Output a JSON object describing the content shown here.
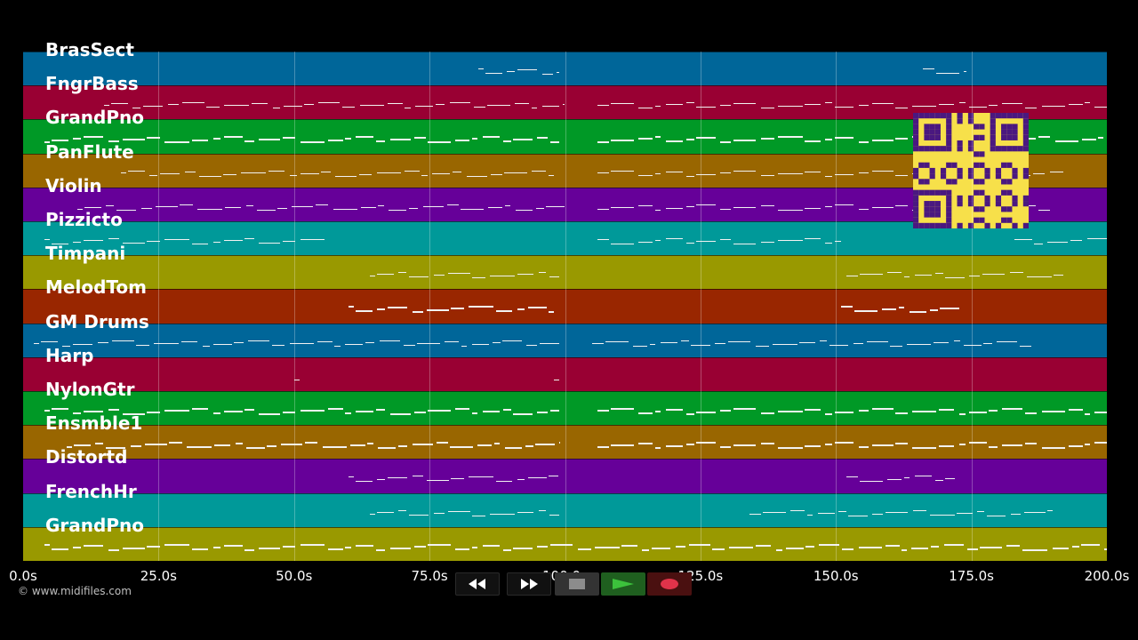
{
  "tracks": [
    {
      "label": "BrasSect",
      "color": "#006699"
    },
    {
      "label": "FngrBass",
      "color": "#990033"
    },
    {
      "label": "GrandPno",
      "color": "#009926"
    },
    {
      "label": "PanFlute",
      "color": "#996600"
    },
    {
      "label": "Violin",
      "color": "#660099"
    },
    {
      "label": "Pizzicto",
      "color": "#009999"
    },
    {
      "label": "Timpani",
      "color": "#999900"
    },
    {
      "label": "MelodTom",
      "color": "#992600"
    },
    {
      "label": "GM Drums",
      "color": "#006699"
    },
    {
      "label": "Harp",
      "color": "#990033"
    },
    {
      "label": "NylonGtr",
      "color": "#009926"
    },
    {
      "label": "Ensmble1",
      "color": "#996600"
    },
    {
      "label": "Distortd",
      "color": "#660099"
    },
    {
      "label": "FrenchHr",
      "color": "#009999"
    },
    {
      "label": "GrandPno",
      "color": "#999900"
    }
  ],
  "time_axis": {
    "start_seconds": 0,
    "end_seconds": 200,
    "ticks": [
      "0.0s",
      "25.0s",
      "50.0s",
      "75.0s",
      "100.0s",
      "125.0s",
      "150.0s",
      "175.0s",
      "200.0s"
    ]
  },
  "copyright": "© www.midifiles.com",
  "transport": {
    "rewind_icon": "rewind-icon",
    "fast_forward_icon": "fast-forward-icon",
    "stop_icon": "stop-icon",
    "play_icon": "play-icon",
    "record_icon": "record-icon",
    "play_color": "#1f9a1f",
    "record_color": "#e0334a"
  },
  "qr_code": {
    "color": "#f7e04a",
    "ink": "#4a1880"
  },
  "notes": {
    "0": [
      [
        84,
        99,
        1
      ],
      [
        166,
        174,
        1
      ]
    ],
    "1": [
      [
        15,
        100,
        1
      ],
      [
        106,
        200,
        1
      ]
    ],
    "2": [
      [
        4,
        99,
        2
      ],
      [
        106,
        165,
        2
      ],
      [
        177,
        200,
        2
      ]
    ],
    "3": [
      [
        18,
        98,
        1
      ],
      [
        106,
        165,
        1
      ],
      [
        176,
        192,
        1
      ]
    ],
    "4": [
      [
        10,
        100,
        1
      ],
      [
        106,
        166,
        1
      ],
      [
        177,
        190,
        1
      ]
    ],
    "5": [
      [
        4,
        56,
        1
      ],
      [
        106,
        151,
        1
      ],
      [
        183,
        200,
        1
      ]
    ],
    "6": [
      [
        64,
        99,
        1
      ],
      [
        152,
        192,
        1
      ]
    ],
    "7": [
      [
        60,
        98,
        2
      ],
      [
        151,
        173,
        2
      ]
    ],
    "8": [
      [
        2,
        99,
        1
      ],
      [
        105,
        186,
        1
      ]
    ],
    "9": [
      [
        50,
        51,
        1
      ],
      [
        98,
        99,
        1
      ]
    ],
    "10": [
      [
        4,
        99,
        2
      ],
      [
        106,
        200,
        2
      ]
    ],
    "11": [
      [
        8,
        99,
        2
      ],
      [
        106,
        200,
        2
      ]
    ],
    "12": [
      [
        60,
        99,
        1
      ],
      [
        152,
        172,
        1
      ]
    ],
    "13": [
      [
        64,
        99,
        1
      ],
      [
        134,
        190,
        1
      ]
    ],
    "14": [
      [
        4,
        200,
        2
      ]
    ]
  }
}
